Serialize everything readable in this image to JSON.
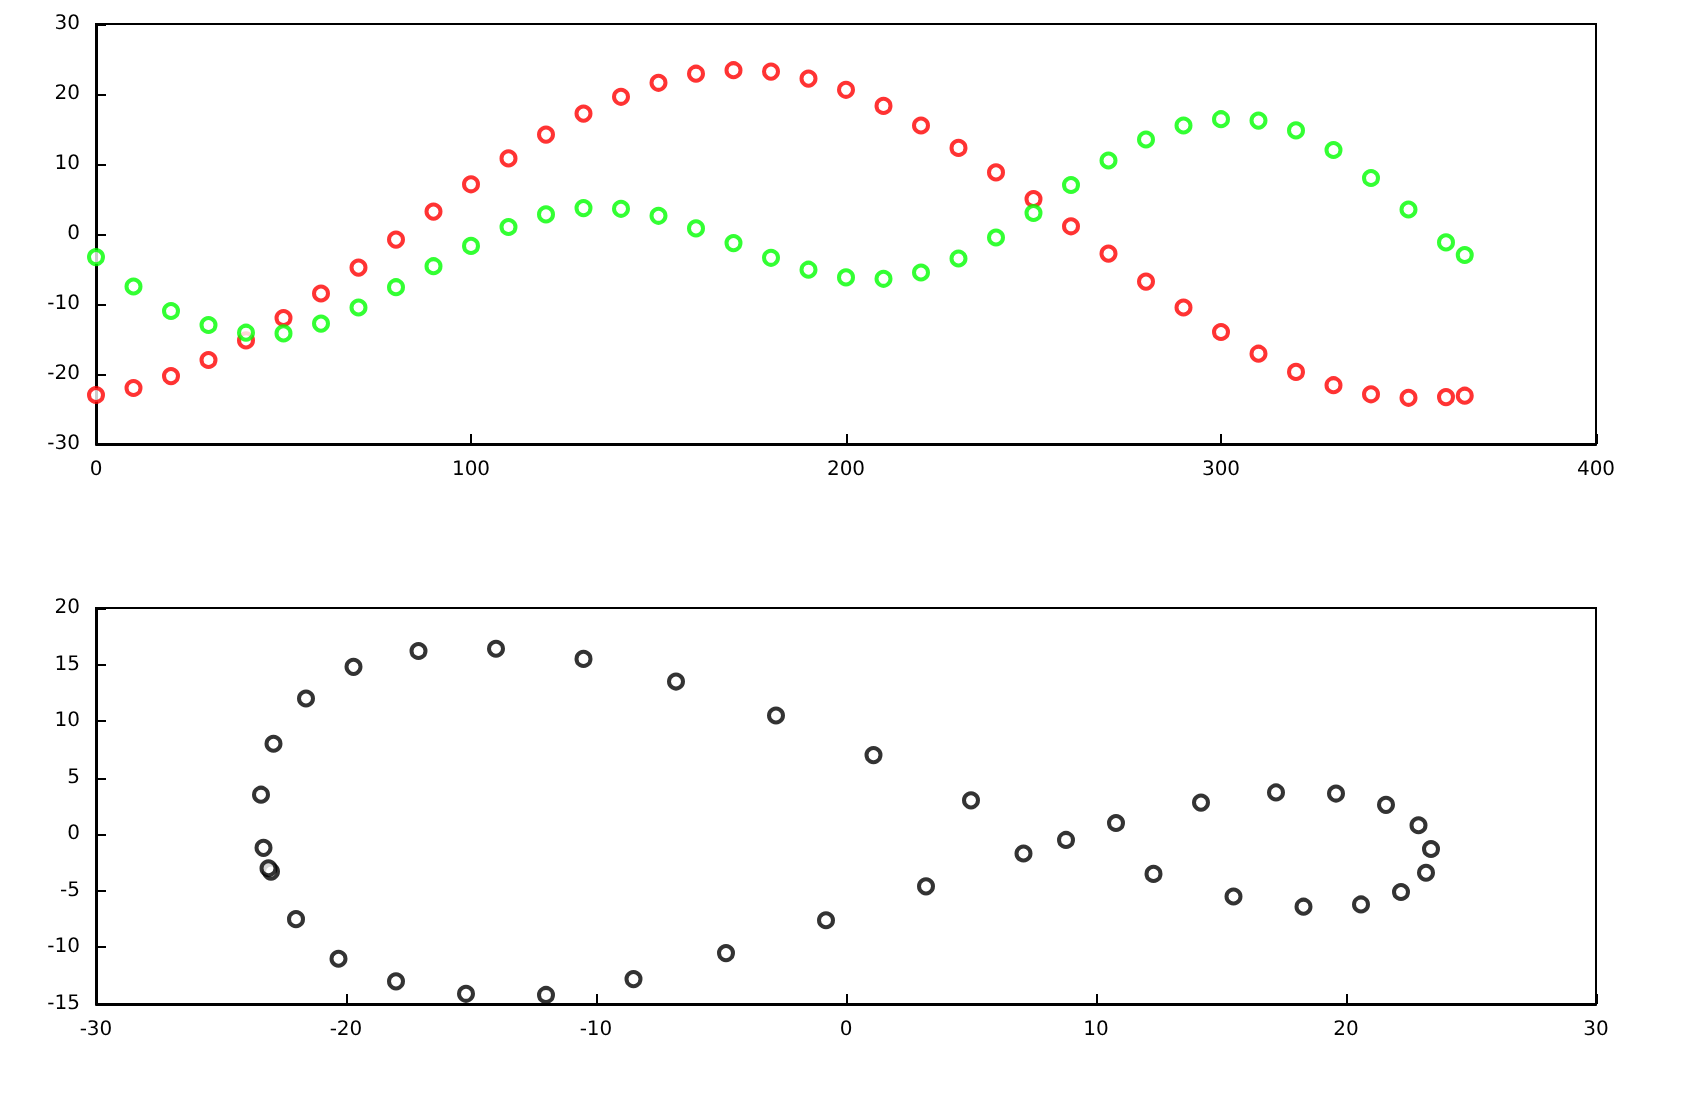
{
  "chart_data": [
    {
      "type": "scatter",
      "marker": "circle",
      "grid": false,
      "x": [
        0,
        10,
        20,
        30,
        40,
        50,
        60,
        70,
        80,
        90,
        100,
        110,
        120,
        130,
        140,
        150,
        160,
        170,
        180,
        190,
        200,
        210,
        220,
        230,
        240,
        250,
        260,
        270,
        280,
        290,
        300,
        310,
        320,
        330,
        340,
        350,
        360,
        365
      ],
      "xlim": [
        0,
        400
      ],
      "xticks": [
        0,
        100,
        200,
        300,
        400
      ],
      "ylim": [
        -30,
        30
      ],
      "yticks": [
        -30,
        -20,
        -10,
        0,
        10,
        20,
        30
      ],
      "series": [
        {
          "color": "#ff0000",
          "values": [
            -23.0,
            -22.0,
            -20.3,
            -18.0,
            -15.2,
            -12.0,
            -8.5,
            -4.8,
            -0.8,
            3.2,
            7.1,
            10.8,
            14.2,
            17.2,
            19.6,
            21.6,
            22.9,
            23.4,
            23.2,
            22.2,
            20.6,
            18.3,
            15.5,
            12.3,
            8.8,
            5.0,
            1.1,
            -2.8,
            -6.8,
            -10.5,
            -14.0,
            -17.1,
            -19.7,
            -21.6,
            -22.9,
            -23.4,
            -23.3,
            -23.1
          ]
        },
        {
          "color": "#00ff00",
          "values": [
            -3.3,
            -7.5,
            -11.0,
            -13.0,
            -14.1,
            -14.2,
            -12.8,
            -10.5,
            -7.6,
            -4.6,
            -1.7,
            1.0,
            2.8,
            3.7,
            3.6,
            2.6,
            0.8,
            -1.3,
            -3.4,
            -5.1,
            -6.2,
            -6.4,
            -5.5,
            -3.5,
            -0.5,
            3.0,
            7.0,
            10.5,
            13.5,
            15.5,
            16.4,
            16.2,
            14.8,
            12.0,
            8.0,
            3.5,
            -1.2,
            -3.0
          ]
        }
      ]
    },
    {
      "type": "scatter",
      "marker": "circle",
      "grid": false,
      "xlim": [
        -30,
        30
      ],
      "xticks": [
        -30,
        -20,
        -10,
        0,
        10,
        20,
        30
      ],
      "ylim": [
        -15,
        20
      ],
      "yticks": [
        -15,
        -10,
        -5,
        0,
        5,
        10,
        15,
        20
      ],
      "series": [
        {
          "color": "#000000",
          "x": [
            -23.0,
            -22.0,
            -20.3,
            -18.0,
            -15.2,
            -12.0,
            -8.5,
            -4.8,
            -0.8,
            3.2,
            7.1,
            10.8,
            14.2,
            17.2,
            19.6,
            21.6,
            22.9,
            23.4,
            23.2,
            22.2,
            20.6,
            18.3,
            15.5,
            12.3,
            8.8,
            5.0,
            1.1,
            -2.8,
            -6.8,
            -10.5,
            -14.0,
            -17.1,
            -19.7,
            -21.6,
            -22.9,
            -23.4,
            -23.3,
            -23.1
          ],
          "values": [
            -3.3,
            -7.5,
            -11.0,
            -13.0,
            -14.1,
            -14.2,
            -12.8,
            -10.5,
            -7.6,
            -4.6,
            -1.7,
            1.0,
            2.8,
            3.7,
            3.6,
            2.6,
            0.8,
            -1.3,
            -3.4,
            -5.1,
            -6.2,
            -6.4,
            -5.5,
            -3.5,
            -0.5,
            3.0,
            7.0,
            10.5,
            13.5,
            15.5,
            16.4,
            16.2,
            14.8,
            12.0,
            8.0,
            3.5,
            -1.2,
            -3.0
          ]
        }
      ]
    }
  ]
}
